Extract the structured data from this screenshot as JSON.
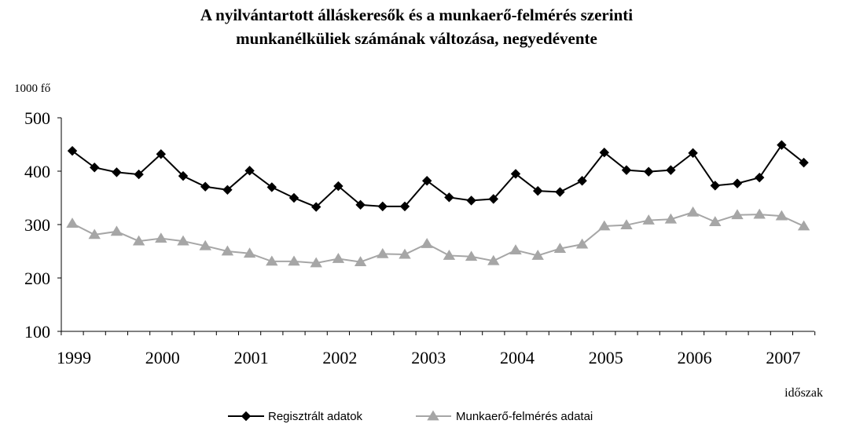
{
  "title_line1": "A nyilvántartott álláskeresők és a munkaerő-felmérés szerinti",
  "title_line2": "munkanélküliek számának változása, negyedévente",
  "chart_data": {
    "type": "line",
    "title": "A nyilvántartott álláskeresők és a munkaerő-felmérés szerinti munkanélküliek számának változása, negyedévente",
    "ylabel": "1000 fő",
    "xlabel": "időszak",
    "ylim": [
      100,
      500
    ],
    "yticks": [
      100,
      200,
      300,
      400,
      500
    ],
    "year_labels": [
      "1999",
      "2000",
      "2001",
      "2002",
      "2003",
      "2004",
      "2005",
      "2006",
      "2007"
    ],
    "grid": false,
    "legend_position": "bottom",
    "series": [
      {
        "name": "Regisztrált adatok",
        "color": "#000000",
        "marker": "diamond",
        "values": [
          438,
          407,
          398,
          394,
          432,
          391,
          371,
          365,
          401,
          370,
          350,
          333,
          372,
          337,
          334,
          334,
          382,
          351,
          345,
          348,
          395,
          363,
          361,
          382,
          435,
          402,
          399,
          402,
          434,
          373,
          377,
          388,
          449,
          416
        ]
      },
      {
        "name": "Munkaerő-felmérés adatai",
        "color": "#a6a6a6",
        "marker": "triangle",
        "values": [
          302,
          281,
          287,
          269,
          274,
          269,
          260,
          250,
          246,
          231,
          231,
          228,
          236,
          230,
          245,
          244,
          264,
          242,
          240,
          232,
          252,
          242,
          255,
          263,
          297,
          299,
          308,
          310,
          323,
          305,
          318,
          319,
          316,
          297
        ]
      }
    ]
  }
}
